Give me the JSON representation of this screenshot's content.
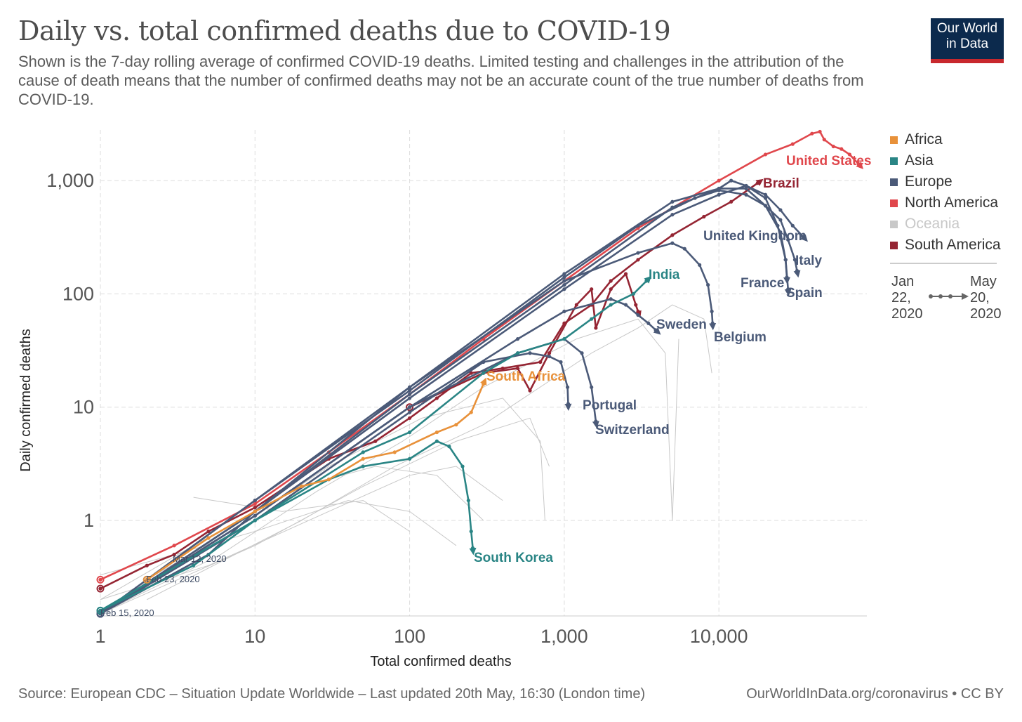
{
  "header": {
    "title": "Daily vs. total confirmed deaths due to COVID-19",
    "subtitle": "Shown is the 7-day rolling average of confirmed COVID-19 deaths. Limited testing and challenges in the attribution of the cause of death means that the number of confirmed deaths may not be an accurate count of the true number of deaths from COVID-19.",
    "logo_line1": "Our World",
    "logo_line2": "in Data"
  },
  "legend": {
    "items": [
      {
        "label": "Africa",
        "color": "#e8913a"
      },
      {
        "label": "Asia",
        "color": "#2a8585"
      },
      {
        "label": "Europe",
        "color": "#4b5a78"
      },
      {
        "label": "North America",
        "color": "#e0474c"
      },
      {
        "label": "Oceania",
        "color": "#c8c8c8"
      },
      {
        "label": "South America",
        "color": "#952533"
      }
    ],
    "time_start": "Jan 22, 2020",
    "time_end": "May 20, 2020"
  },
  "footer": {
    "source": "Source: European CDC – Situation Update Worldwide – Last updated 20th May, 16:30 (London time)",
    "credit": "OurWorldInData.org/coronavirus • CC BY"
  },
  "chart_data": {
    "type": "line",
    "title": "Daily vs. total confirmed deaths due to COVID-19",
    "xlabel": "Total confirmed deaths",
    "ylabel": "Daily confirmed deaths",
    "xscale": "log",
    "yscale": "log",
    "xlim": [
      1,
      90000
    ],
    "ylim": [
      0.14,
      2800
    ],
    "xticks": [
      {
        "v": 1,
        "label": "1"
      },
      {
        "v": 10,
        "label": "10"
      },
      {
        "v": 100,
        "label": "100"
      },
      {
        "v": 1000,
        "label": "1,000"
      },
      {
        "v": 10000,
        "label": "10,000"
      }
    ],
    "yticks": [
      {
        "v": 1,
        "label": "1"
      },
      {
        "v": 10,
        "label": "10"
      },
      {
        "v": 100,
        "label": "100"
      },
      {
        "v": 1000,
        "label": "1,000"
      }
    ],
    "grid": true,
    "legend_position": "right",
    "series": [
      {
        "region": "Oceania",
        "points": [
          [
            1,
            0.33
          ],
          [
            3,
            0.5
          ],
          [
            10,
            0.8
          ],
          [
            40,
            1.5
          ],
          [
            100,
            1.2
          ],
          [
            200,
            0.6
          ]
        ]
      },
      {
        "region": "Oceania",
        "points": [
          [
            1,
            0.2
          ],
          [
            4,
            0.6
          ],
          [
            20,
            2
          ],
          [
            60,
            3
          ],
          [
            150,
            2.5
          ],
          [
            300,
            1
          ]
        ]
      },
      {
        "region": "Oceania",
        "points": [
          [
            2,
            0.3
          ],
          [
            8,
            0.9
          ],
          [
            30,
            3
          ],
          [
            120,
            8
          ],
          [
            400,
            12
          ],
          [
            700,
            5
          ],
          [
            750,
            1
          ]
        ]
      },
      {
        "region": "Oceania",
        "points": [
          [
            1,
            0.15
          ],
          [
            6,
            0.5
          ],
          [
            25,
            1.8
          ],
          [
            90,
            5
          ],
          [
            300,
            15
          ],
          [
            1200,
            40
          ],
          [
            3000,
            60
          ],
          [
            4500,
            30
          ],
          [
            5000,
            1
          ],
          [
            5500,
            40
          ]
        ]
      },
      {
        "region": "Oceania",
        "points": [
          [
            4,
            1.6
          ],
          [
            15,
            1.2
          ],
          [
            50,
            1.5
          ],
          [
            100,
            0.8
          ]
        ]
      },
      {
        "region": "Oceania",
        "points": [
          [
            1,
            0.15
          ],
          [
            10,
            0.6
          ],
          [
            50,
            2
          ],
          [
            200,
            5
          ],
          [
            600,
            8
          ],
          [
            800,
            3
          ]
        ]
      },
      {
        "region": "Oceania",
        "points": [
          [
            2,
            0.2
          ],
          [
            20,
            1
          ],
          [
            80,
            3
          ],
          [
            300,
            7
          ],
          [
            1500,
            30
          ],
          [
            3000,
            50
          ],
          [
            5000,
            80
          ],
          [
            8000,
            60
          ],
          [
            9000,
            20
          ]
        ]
      },
      {
        "region": "Oceania",
        "points": [
          [
            1,
            0.2
          ],
          [
            5,
            0.4
          ],
          [
            30,
            1.2
          ],
          [
            100,
            2.5
          ],
          [
            200,
            3
          ],
          [
            400,
            1.5
          ]
        ]
      },
      {
        "name": "United States",
        "region": "North America",
        "points": [
          [
            1,
            0.3
          ],
          [
            3,
            0.6
          ],
          [
            10,
            1.4
          ],
          [
            30,
            4
          ],
          [
            100,
            13
          ],
          [
            300,
            40
          ],
          [
            1000,
            130
          ],
          [
            3000,
            380
          ],
          [
            10000,
            1000
          ],
          [
            20000,
            1700
          ],
          [
            30000,
            2100
          ],
          [
            40000,
            2600
          ],
          [
            45000,
            2700
          ],
          [
            48000,
            2300
          ],
          [
            55000,
            2000
          ],
          [
            62000,
            1900
          ],
          [
            70000,
            1700
          ],
          [
            80000,
            1400
          ]
        ]
      },
      {
        "name": "Brazil",
        "region": "South America",
        "points": [
          [
            1,
            0.25
          ],
          [
            2,
            0.4
          ],
          [
            3,
            0.5
          ],
          [
            5,
            0.8
          ],
          [
            10,
            1.3
          ],
          [
            30,
            3.5
          ],
          [
            60,
            5
          ],
          [
            100,
            8
          ],
          [
            150,
            12
          ],
          [
            250,
            20
          ],
          [
            400,
            22
          ],
          [
            700,
            25
          ],
          [
            1000,
            55
          ],
          [
            1500,
            80
          ],
          [
            2000,
            130
          ],
          [
            3000,
            200
          ],
          [
            5000,
            330
          ],
          [
            8000,
            480
          ],
          [
            12000,
            650
          ],
          [
            17800,
            950
          ]
        ]
      },
      {
        "region": "South America",
        "points": [
          [
            100,
            10
          ],
          [
            300,
            20
          ],
          [
            500,
            22
          ],
          [
            600,
            14
          ],
          [
            800,
            30
          ],
          [
            1200,
            80
          ],
          [
            1500,
            110
          ],
          [
            1600,
            50
          ],
          [
            2000,
            110
          ],
          [
            2500,
            150
          ],
          [
            2900,
            80
          ],
          [
            3000,
            70
          ]
        ]
      },
      {
        "name": "United Kingdom",
        "region": "Europe",
        "points": [
          [
            1,
            0.15
          ],
          [
            5,
            0.5
          ],
          [
            10,
            1.2
          ],
          [
            100,
            13
          ],
          [
            1000,
            120
          ],
          [
            5000,
            580
          ],
          [
            10000,
            850
          ],
          [
            12000,
            1000
          ],
          [
            15000,
            900
          ],
          [
            20000,
            750
          ],
          [
            25000,
            550
          ],
          [
            30000,
            400
          ],
          [
            35000,
            320
          ]
        ]
      },
      {
        "name": "Italy",
        "region": "Europe",
        "points": [
          [
            2,
            0.3
          ],
          [
            10,
            1.5
          ],
          [
            100,
            14
          ],
          [
            1000,
            140
          ],
          [
            3000,
            400
          ],
          [
            7000,
            700
          ],
          [
            10000,
            820
          ],
          [
            15000,
            750
          ],
          [
            20000,
            600
          ],
          [
            25000,
            450
          ],
          [
            28000,
            300
          ],
          [
            31000,
            200
          ],
          [
            32000,
            160
          ]
        ]
      },
      {
        "name": "Spain",
        "region": "Europe",
        "points": [
          [
            1,
            0.15
          ],
          [
            10,
            1.5
          ],
          [
            100,
            15
          ],
          [
            1000,
            150
          ],
          [
            5000,
            650
          ],
          [
            10000,
            850
          ],
          [
            15000,
            850
          ],
          [
            20000,
            600
          ],
          [
            25000,
            350
          ],
          [
            27000,
            200
          ],
          [
            27500,
            140
          ]
        ]
      },
      {
        "name": "France",
        "region": "Europe",
        "points": [
          [
            1,
            0.15
          ],
          [
            10,
            1.2
          ],
          [
            100,
            12
          ],
          [
            1000,
            110
          ],
          [
            5000,
            500
          ],
          [
            10000,
            750
          ],
          [
            15000,
            900
          ],
          [
            20000,
            700
          ],
          [
            24000,
            400
          ],
          [
            27000,
            200
          ],
          [
            28000,
            110
          ]
        ]
      },
      {
        "name": "Sweden",
        "region": "Europe",
        "points": [
          [
            1,
            0.15
          ],
          [
            10,
            1.1
          ],
          [
            100,
            10
          ],
          [
            500,
            40
          ],
          [
            1000,
            70
          ],
          [
            2000,
            90
          ],
          [
            2500,
            80
          ],
          [
            3000,
            65
          ],
          [
            3500,
            55
          ],
          [
            3900,
            48
          ]
        ]
      },
      {
        "name": "Belgium",
        "region": "Europe",
        "points": [
          [
            1,
            0.15
          ],
          [
            10,
            1.2
          ],
          [
            100,
            15
          ],
          [
            1000,
            130
          ],
          [
            3000,
            230
          ],
          [
            5000,
            280
          ],
          [
            6000,
            250
          ],
          [
            7500,
            180
          ],
          [
            8500,
            120
          ],
          [
            9000,
            70
          ],
          [
            9100,
            55
          ]
        ]
      },
      {
        "name": "Portugal",
        "region": "Europe",
        "points": [
          [
            1,
            0.15
          ],
          [
            10,
            1
          ],
          [
            100,
            9
          ],
          [
            300,
            25
          ],
          [
            600,
            30
          ],
          [
            800,
            28
          ],
          [
            950,
            25
          ],
          [
            1050,
            15
          ],
          [
            1060,
            10.7
          ]
        ]
      },
      {
        "name": "Switzerland",
        "region": "Europe",
        "points": [
          [
            1,
            0.15
          ],
          [
            10,
            1.1
          ],
          [
            100,
            10
          ],
          [
            500,
            30
          ],
          [
            1000,
            40
          ],
          [
            1300,
            30
          ],
          [
            1500,
            15
          ],
          [
            1600,
            7.5
          ]
        ]
      },
      {
        "name": "India",
        "region": "Asia",
        "points": [
          [
            1,
            0.16
          ],
          [
            10,
            1
          ],
          [
            50,
            4
          ],
          [
            100,
            6
          ],
          [
            300,
            20
          ],
          [
            500,
            30
          ],
          [
            1000,
            40
          ],
          [
            1500,
            60
          ],
          [
            2000,
            80
          ],
          [
            2800,
            100
          ],
          [
            3400,
            130
          ]
        ]
      },
      {
        "name": "South Korea",
        "region": "Asia",
        "points": [
          [
            1,
            0.16
          ],
          [
            4,
            0.4
          ],
          [
            10,
            1
          ],
          [
            30,
            2.3
          ],
          [
            50,
            3
          ],
          [
            100,
            3.5
          ],
          [
            150,
            5
          ],
          [
            180,
            4.5
          ],
          [
            220,
            3
          ],
          [
            240,
            1.5
          ],
          [
            250,
            0.8
          ],
          [
            256,
            0.57
          ]
        ]
      },
      {
        "name": "South Africa",
        "region": "Africa",
        "points": [
          [
            2,
            0.3
          ],
          [
            5,
            0.7
          ],
          [
            10,
            1.2
          ],
          [
            20,
            2
          ],
          [
            30,
            2.3
          ],
          [
            50,
            3.5
          ],
          [
            80,
            4
          ],
          [
            150,
            6
          ],
          [
            200,
            7
          ],
          [
            250,
            9
          ],
          [
            300,
            16
          ]
        ]
      }
    ],
    "annotations": [
      {
        "label": "Mar 12, 2020"
      },
      {
        "label": "Feb 23, 2020"
      },
      {
        "label": "Feb 15, 2020"
      }
    ]
  }
}
